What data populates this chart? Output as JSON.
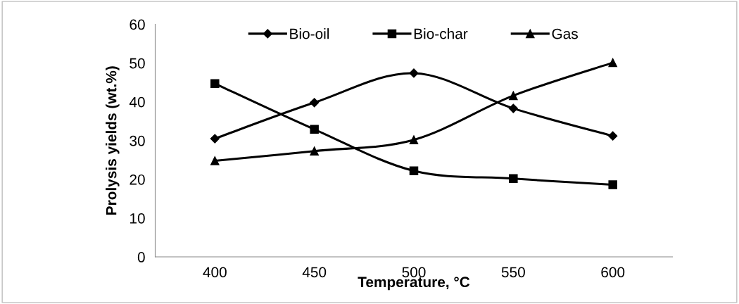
{
  "chart_data": {
    "type": "line",
    "xlabel": "Temperature, °C",
    "ylabel": "Prolysis yields (wt.%)",
    "categories": [
      "400",
      "450",
      "500",
      "550",
      "600"
    ],
    "series": [
      {
        "name": "Bio-oil",
        "color": "#000000",
        "marker": "diamond",
        "values": [
          30.5,
          39.8,
          47.4,
          38.3,
          31.2
        ]
      },
      {
        "name": "Bio-char",
        "color": "#000000",
        "marker": "square",
        "values": [
          44.7,
          32.9,
          22.2,
          20.2,
          18.6
        ]
      },
      {
        "name": "Gas",
        "color": "#000000",
        "marker": "triangle",
        "values": [
          24.8,
          27.3,
          30.2,
          41.6,
          50.1
        ]
      }
    ],
    "ylim": [
      0,
      60
    ],
    "yticks": [
      0,
      10,
      20,
      30,
      40,
      50,
      60
    ],
    "grid": false,
    "legend": "top",
    "line_style": "solid"
  }
}
